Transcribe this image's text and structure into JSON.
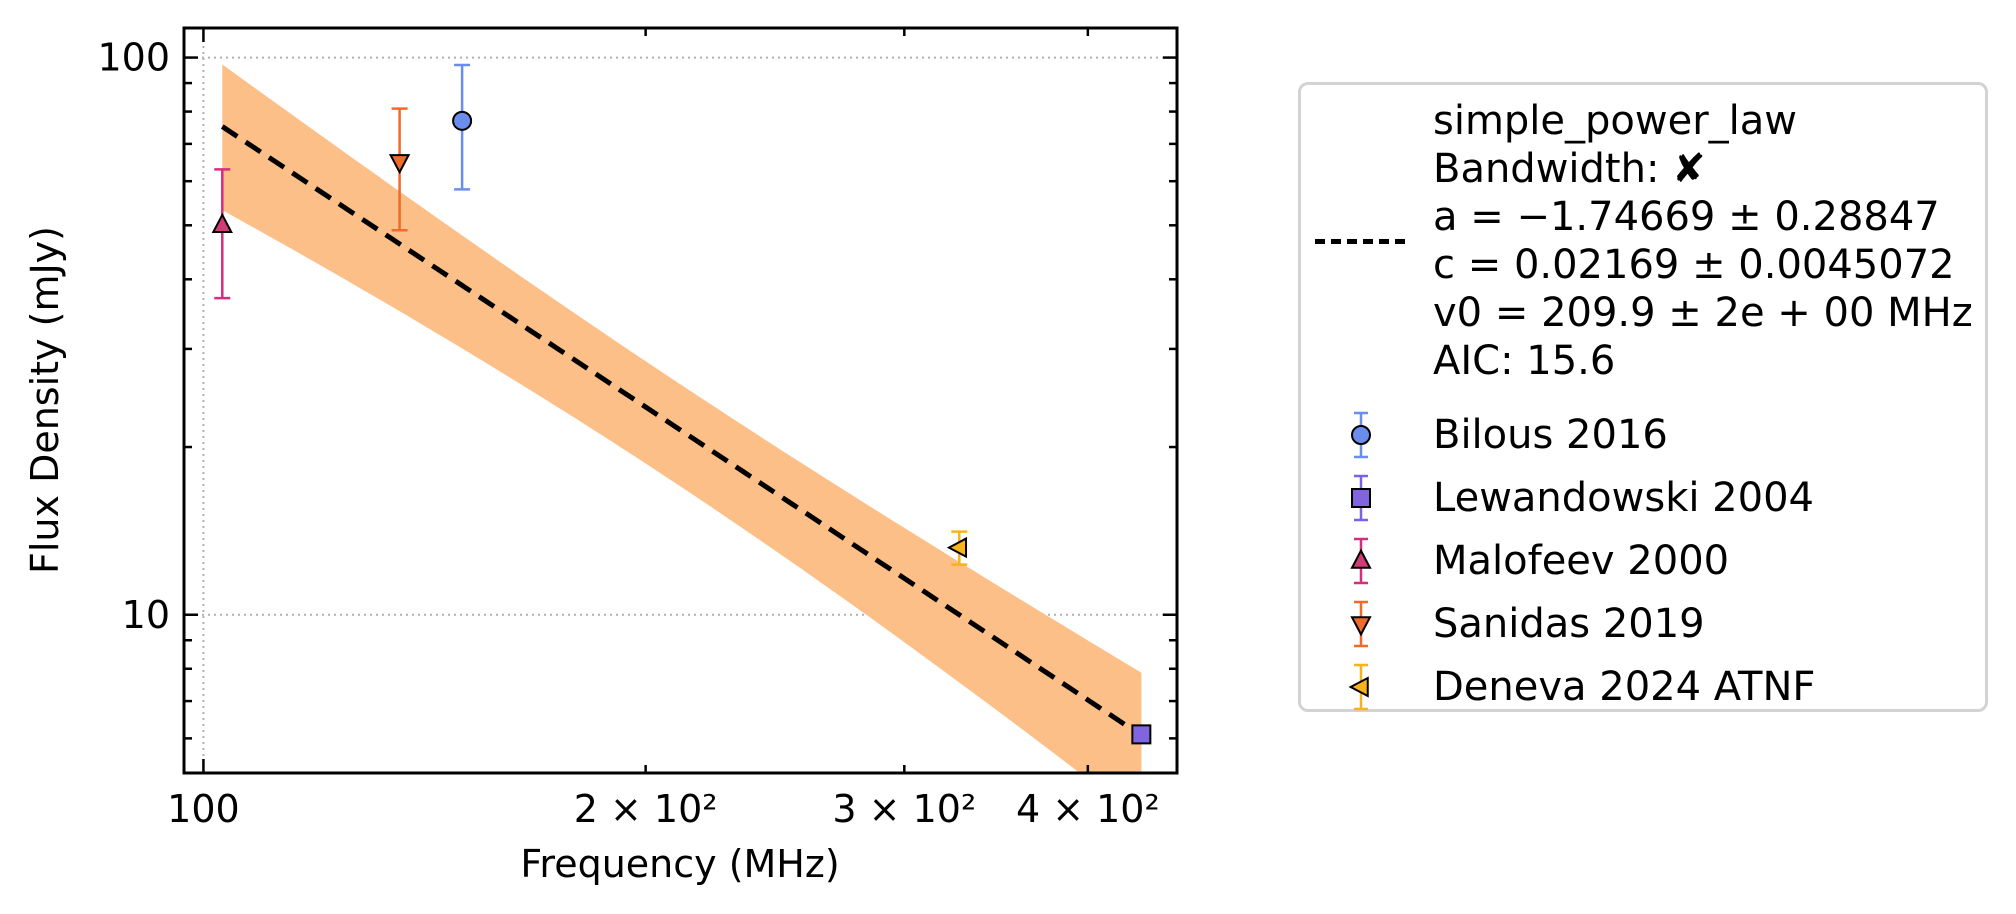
{
  "chart_data": {
    "type": "scatter",
    "xlabel": "Frequency (MHz)",
    "ylabel": "Flux Density (mJy)",
    "xscale": "log",
    "yscale": "log",
    "xlim": [
      97,
      460
    ],
    "ylim": [
      5.2,
      113
    ],
    "grid": true,
    "legend_position": "right, outside plot",
    "x_ticks": [
      {
        "value": 100,
        "label": "100"
      },
      {
        "value": 200,
        "label": "2 × 10²"
      },
      {
        "value": 300,
        "label": "3 × 10²"
      },
      {
        "value": 400,
        "label": "4 × 10²"
      }
    ],
    "y_ticks": [
      {
        "value": 10,
        "label": "10"
      },
      {
        "value": 100,
        "label": "100"
      }
    ],
    "fit": {
      "label_lines": [
        "simple_power_law",
        "Bandwidth: ✘",
        "a = −1.74669 ± 0.28847",
        "c = 0.02169 ± 0.0045072",
        "v0 = 209.9 ± 2e + 00 MHz",
        "AIC: 15.6"
      ],
      "model": "simple_power_law",
      "a": -1.74669,
      "a_err": 0.28847,
      "c": 0.02169,
      "c_err": 0.0045072,
      "v0": 209.9,
      "x_range": [
        103,
        435
      ],
      "line_color": "#000000",
      "band_color": "#fdbf88"
    },
    "series": [
      {
        "name": "Bilous 2016",
        "marker": "circle",
        "color": "#6b8ded",
        "errcolor": "#6b8ded",
        "x": 150,
        "y": 77,
        "yerr_low": 58,
        "yerr_high": 97
      },
      {
        "name": "Lewandowski 2004",
        "marker": "square",
        "color": "#8064e0",
        "errcolor": "#7b61e8",
        "x": 435,
        "y": 6.1,
        "yerr_low": 6.1,
        "yerr_high": 6.1
      },
      {
        "name": "Malofeev 2000",
        "marker": "triangle-up",
        "color": "#d23c76",
        "errcolor": "#d42f7c",
        "x": 103,
        "y": 50,
        "yerr_low": 37,
        "yerr_high": 63
      },
      {
        "name": "Sanidas 2019",
        "marker": "triangle-down",
        "color": "#f06b2a",
        "errcolor": "#f06b2a",
        "x": 136,
        "y": 65,
        "yerr_low": 49,
        "yerr_high": 81
      },
      {
        "name": "Deneva 2024 ATNF",
        "marker": "triangle-left",
        "color": "#f7b21c",
        "errcolor": "#f7b21c",
        "x": 327,
        "y": 13.2,
        "yerr_low": 12.3,
        "yerr_high": 14.1
      }
    ]
  }
}
